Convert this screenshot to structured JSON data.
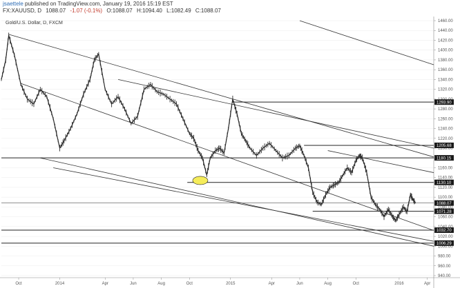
{
  "header": {
    "author": "jsaettele",
    "published_text": "published on TradingView.com, January 19, 2016 15:19 EST",
    "symbol": "FX:XAUUSD, D",
    "last": "1088.07",
    "change": "-1.07 (-0.1%)",
    "open": "O:1088.07",
    "high": "H:1094.40",
    "low": "L:1082.49",
    "close": "C:1088.07"
  },
  "chart_data": {
    "type": "candlestick",
    "title": "Gold/U.S. Dollar, D, FXCM",
    "y_axis": {
      "min": 940,
      "max": 1460,
      "ticks": [
        "1460.00",
        "1440.00",
        "1420.00",
        "1400.00",
        "1380.00",
        "1360.00",
        "1340.00",
        "1320.00",
        "1300.00",
        "1280.00",
        "1260.00",
        "1240.00",
        "1220.00",
        "1200.00",
        "1180.00",
        "1160.00",
        "1140.00",
        "1120.00",
        "1100.00",
        "1080.00",
        "1060.00",
        "1040.00",
        "1020.00",
        "1000.00",
        "980.00",
        "960.00",
        "940.00"
      ]
    },
    "x_axis": {
      "ticks": [
        {
          "label": "Oct",
          "t": 0.04
        },
        {
          "label": "2014",
          "t": 0.135
        },
        {
          "label": "Apr",
          "t": 0.24
        },
        {
          "label": "Jun",
          "t": 0.305
        },
        {
          "label": "Aug",
          "t": 0.37
        },
        {
          "label": "Oct",
          "t": 0.435
        },
        {
          "label": "2015",
          "t": 0.53
        },
        {
          "label": "Apr",
          "t": 0.625
        },
        {
          "label": "Jun",
          "t": 0.69
        },
        {
          "label": "Aug",
          "t": 0.755
        },
        {
          "label": "Oct",
          "t": 0.82
        },
        {
          "label": "2016",
          "t": 0.92
        },
        {
          "label": "Apr",
          "t": 0.985
        }
      ]
    },
    "price_path": [
      [
        0.0,
        1340
      ],
      [
        0.01,
        1380
      ],
      [
        0.017,
        1430
      ],
      [
        0.03,
        1390
      ],
      [
        0.045,
        1330
      ],
      [
        0.06,
        1300
      ],
      [
        0.075,
        1290
      ],
      [
        0.09,
        1320
      ],
      [
        0.105,
        1305
      ],
      [
        0.12,
        1260
      ],
      [
        0.135,
        1200
      ],
      [
        0.145,
        1215
      ],
      [
        0.16,
        1240
      ],
      [
        0.175,
        1270
      ],
      [
        0.19,
        1310
      ],
      [
        0.205,
        1340
      ],
      [
        0.215,
        1380
      ],
      [
        0.225,
        1392
      ],
      [
        0.24,
        1320
      ],
      [
        0.255,
        1290
      ],
      [
        0.27,
        1305
      ],
      [
        0.285,
        1280
      ],
      [
        0.3,
        1250
      ],
      [
        0.315,
        1265
      ],
      [
        0.33,
        1320
      ],
      [
        0.345,
        1330
      ],
      [
        0.36,
        1315
      ],
      [
        0.375,
        1310
      ],
      [
        0.39,
        1300
      ],
      [
        0.405,
        1290
      ],
      [
        0.42,
        1260
      ],
      [
        0.435,
        1230
      ],
      [
        0.445,
        1220
      ],
      [
        0.455,
        1195
      ],
      [
        0.465,
        1180
      ],
      [
        0.475,
        1145
      ],
      [
        0.483,
        1180
      ],
      [
        0.495,
        1195
      ],
      [
        0.505,
        1200
      ],
      [
        0.515,
        1190
      ],
      [
        0.525,
        1240
      ],
      [
        0.535,
        1300
      ],
      [
        0.545,
        1270
      ],
      [
        0.555,
        1230
      ],
      [
        0.565,
        1215
      ],
      [
        0.575,
        1200
      ],
      [
        0.59,
        1185
      ],
      [
        0.605,
        1200
      ],
      [
        0.62,
        1210
      ],
      [
        0.635,
        1195
      ],
      [
        0.65,
        1180
      ],
      [
        0.665,
        1185
      ],
      [
        0.68,
        1200
      ],
      [
        0.69,
        1205
      ],
      [
        0.7,
        1185
      ],
      [
        0.71,
        1160
      ],
      [
        0.72,
        1110
      ],
      [
        0.73,
        1090
      ],
      [
        0.74,
        1085
      ],
      [
        0.75,
        1105
      ],
      [
        0.76,
        1120
      ],
      [
        0.77,
        1125
      ],
      [
        0.78,
        1130
      ],
      [
        0.79,
        1145
      ],
      [
        0.8,
        1160
      ],
      [
        0.81,
        1150
      ],
      [
        0.82,
        1175
      ],
      [
        0.828,
        1185
      ],
      [
        0.835,
        1180
      ],
      [
        0.845,
        1150
      ],
      [
        0.855,
        1100
      ],
      [
        0.865,
        1085
      ],
      [
        0.875,
        1075
      ],
      [
        0.885,
        1060
      ],
      [
        0.895,
        1075
      ],
      [
        0.905,
        1060
      ],
      [
        0.912,
        1052
      ],
      [
        0.92,
        1065
      ],
      [
        0.93,
        1080
      ],
      [
        0.938,
        1070
      ],
      [
        0.946,
        1105
      ],
      [
        0.952,
        1095
      ],
      [
        0.958,
        1088
      ]
    ],
    "levels": [
      {
        "label": "1293.90",
        "value": 1293.9,
        "x_start": 0.535
      },
      {
        "label": "1205.68",
        "value": 1205.68,
        "x_start": 0.7
      },
      {
        "label": "1180.15",
        "value": 1180.15,
        "x_start": 0.0
      },
      {
        "label": "1130.10",
        "value": 1130.1,
        "x_start": 0.43
      },
      {
        "label": "1088.07",
        "value": 1088.07,
        "x_start": 0.0,
        "style": "price"
      },
      {
        "label": "1071.28",
        "value": 1071.28,
        "x_start": 0.72
      },
      {
        "label": "1032.70",
        "value": 1032.7,
        "x_start": 0.0
      },
      {
        "label": "1006.29",
        "value": 1006.29,
        "x_start": 0.0
      }
    ],
    "trendlines": [
      {
        "x1": 0.017,
        "y1": 1432,
        "x2": 1.0,
        "y2": 1182
      },
      {
        "x1": 0.045,
        "y1": 1332,
        "x2": 1.0,
        "y2": 1032
      },
      {
        "x1": 0.09,
        "y1": 1180,
        "x2": 1.0,
        "y2": 1000
      },
      {
        "x1": 0.12,
        "y1": 1160,
        "x2": 1.0,
        "y2": 1010
      },
      {
        "x1": 0.27,
        "y1": 1340,
        "x2": 1.0,
        "y2": 1200
      },
      {
        "x1": 0.755,
        "y1": 1195,
        "x2": 1.0,
        "y2": 1150
      },
      {
        "x1": 0.69,
        "y1": 1460,
        "x2": 1.0,
        "y2": 1370
      }
    ],
    "highlight": {
      "x": 0.46,
      "y": 1134
    }
  },
  "colors": {
    "line": "#2b2b2b",
    "levelbox": "#1a1a1a",
    "highlight": "#f5ec5a",
    "grid": "#e6e6e6"
  }
}
